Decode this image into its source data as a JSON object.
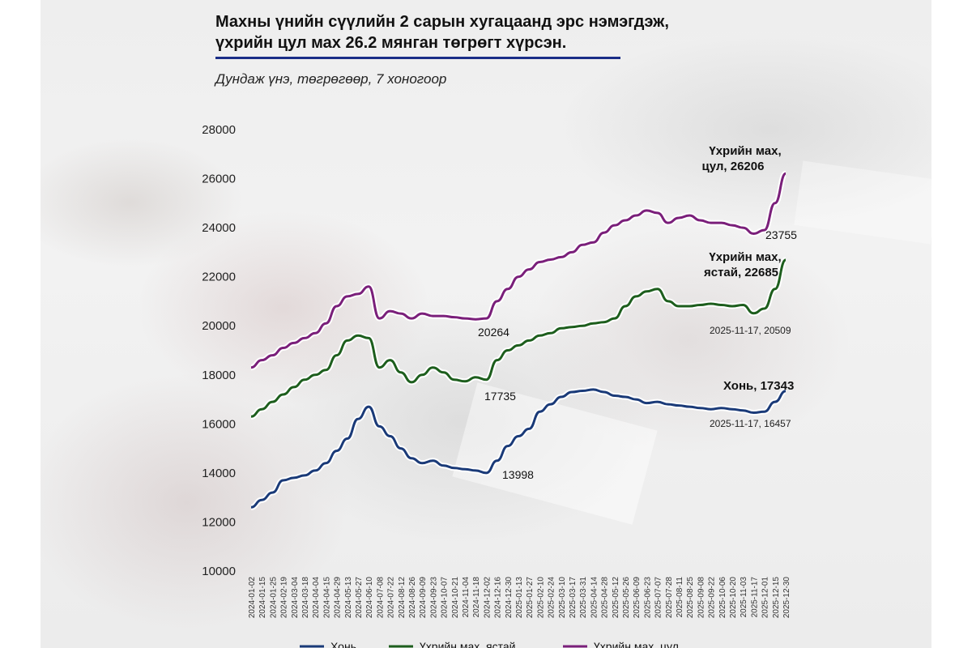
{
  "header": {
    "title": "Махны үнийн сүүлийн 2 сарын хугацаанд эрс нэмэгдэж,\nүхрийн цул мах 26.2 мянган төгрөгт хүрсэн.",
    "subtitle": "Дундаж үнэ, төгрөгөөр, 7 хоногоор"
  },
  "colors": {
    "accent_rule": "#1a2d86",
    "khon": "#1a3a78",
    "yastai": "#1d5e1d",
    "tsul": "#7a1f7a"
  },
  "chart_data": {
    "type": "line",
    "title": "",
    "xlabel": "",
    "ylabel": "",
    "ylim": [
      10000,
      28000
    ],
    "yticks": [
      "28000",
      "26000",
      "24000",
      "22000",
      "20000",
      "18000",
      "16000",
      "14000",
      "12000",
      "10000"
    ],
    "grid": false,
    "legend_position": "bottom",
    "x": [
      "2024-01-02",
      "2024-01-15",
      "2024-01-25",
      "2024-02-19",
      "2024-03-04",
      "2024-03-18",
      "2024-04-04",
      "2024-04-15",
      "2024-04-29",
      "2024-05-13",
      "2024-05-27",
      "2024-06-10",
      "2024-07-08",
      "2024-07-22",
      "2024-08-12",
      "2024-08-26",
      "2024-09-09",
      "2024-09-23",
      "2024-10-07",
      "2024-10-21",
      "2024-11-04",
      "2024-11-18",
      "2024-12-02",
      "2024-12-16",
      "2024-12-30",
      "2025-01-13",
      "2025-01-27",
      "2025-02-10",
      "2025-02-24",
      "2025-03-10",
      "2025-03-17",
      "2025-03-31",
      "2025-04-14",
      "2025-04-28",
      "2025-05-12",
      "2025-05-26",
      "2025-06-09",
      "2025-06-23",
      "2025-07-07",
      "2025-07-28",
      "2025-08-11",
      "2025-08-25",
      "2025-09-08",
      "2025-09-22",
      "2025-10-06",
      "2025-10-20",
      "2025-11-03",
      "2025-11-17",
      "2025-12-01",
      "2025-12-15",
      "2025-12-30"
    ],
    "series": [
      {
        "name": "Хонь",
        "color": "#1a3a78",
        "values": [
          12600,
          12900,
          13200,
          13700,
          13800,
          13900,
          14100,
          14400,
          14900,
          15400,
          16200,
          16700,
          15900,
          15500,
          15000,
          14600,
          14400,
          14500,
          14300,
          14200,
          14150,
          14100,
          13998,
          14500,
          15100,
          15500,
          15800,
          16500,
          16800,
          17100,
          17300,
          17350,
          17400,
          17300,
          17150,
          17100,
          17000,
          16850,
          16900,
          16800,
          16750,
          16700,
          16650,
          16600,
          16650,
          16600,
          16550,
          16457,
          16500,
          16900,
          17343
        ]
      },
      {
        "name": "Үхрийн мах, ястай",
        "color": "#1d5e1d",
        "values": [
          16300,
          16600,
          16900,
          17200,
          17500,
          17800,
          18000,
          18200,
          18800,
          19400,
          19600,
          19500,
          18300,
          18600,
          18100,
          17700,
          18000,
          18300,
          18100,
          17800,
          17735,
          17900,
          17800,
          18600,
          19000,
          19200,
          19400,
          19600,
          19700,
          19900,
          19950,
          20000,
          20100,
          20150,
          20300,
          20800,
          21200,
          21400,
          21500,
          21000,
          20800,
          20800,
          20850,
          20900,
          20850,
          20800,
          20850,
          20509,
          20700,
          21500,
          22685
        ]
      },
      {
        "name": "Үхрийн мах, цул",
        "color": "#7a1f7a",
        "values": [
          18300,
          18600,
          18800,
          19100,
          19300,
          19500,
          19700,
          20100,
          20800,
          21200,
          21300,
          21600,
          20300,
          20600,
          20500,
          20300,
          20500,
          20400,
          20400,
          20350,
          20300,
          20264,
          20300,
          21000,
          21500,
          22000,
          22300,
          22600,
          22700,
          22800,
          23000,
          23300,
          23400,
          23800,
          24100,
          24300,
          24500,
          24700,
          24600,
          24200,
          24400,
          24500,
          24300,
          24200,
          24200,
          24100,
          24000,
          23755,
          23900,
          25000,
          26206
        ]
      }
    ],
    "annotations": {
      "tsul_end_line1": "Үхрийн мах,",
      "tsul_end_line2": "цул, 26206",
      "tsul_min": "23755",
      "yastai_end_line1": "Үхрийн мах,",
      "yastai_end_line2": "ястай, 22685",
      "yastai_nov": "2025-11-17, 20509",
      "khon_end": "Хонь, 17343",
      "khon_nov": "2025-11-17, 16457",
      "tsul_low": "20264",
      "yastai_low": "17735",
      "khon_low": "13998"
    }
  }
}
